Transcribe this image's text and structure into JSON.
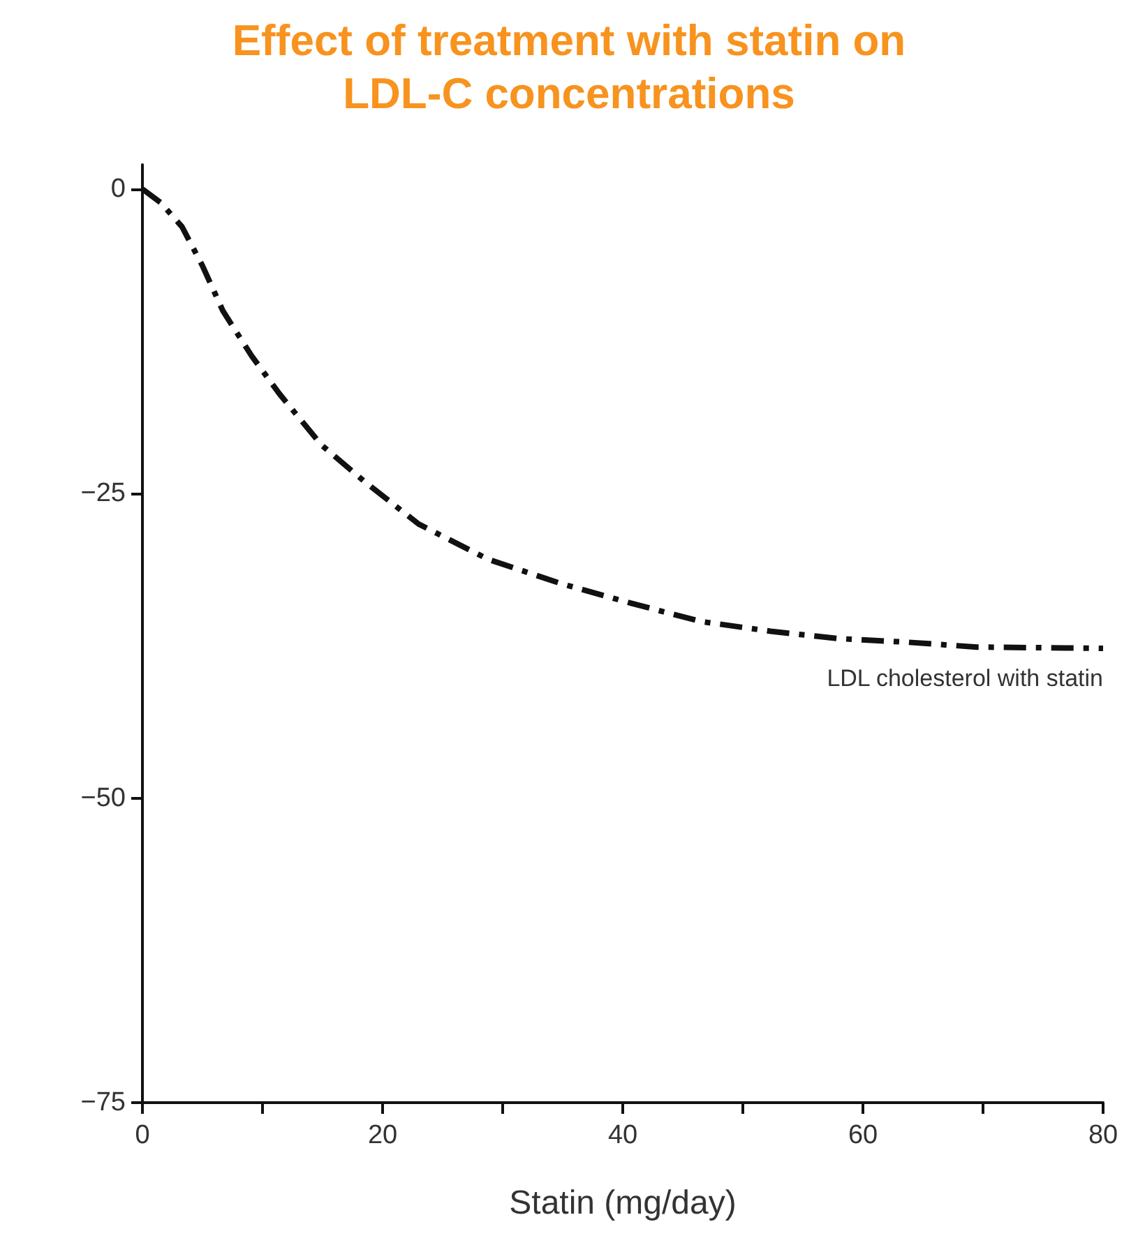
{
  "chart_data": {
    "type": "line",
    "title": "Effect of treatment with statin on\nLDL-C concentrations",
    "xlabel": "Statin (mg/day)",
    "series": [
      {
        "name": "LDL cholesterol with statin",
        "color": "#111111",
        "x": [
          0,
          1.5,
          3.3,
          5.0,
          6.7,
          9.1,
          11.4,
          14.9,
          18.6,
          23.0,
          28.8,
          34.9,
          40.7,
          46.5,
          52.3,
          57.9,
          63.7,
          69.5,
          80
        ],
        "values": [
          0,
          -1.1,
          -3.1,
          -6.3,
          -10,
          -13.7,
          -16.8,
          -21.0,
          -24.1,
          -27.5,
          -30.4,
          -32.4,
          -34.0,
          -35.5,
          -36.3,
          -36.9,
          -37.2,
          -37.6,
          -37.7
        ]
      }
    ],
    "xlim": [
      0,
      80
    ],
    "xticks": [
      0,
      {
        "value": 10,
        "label": null
      },
      20,
      {
        "value": 30,
        "label": null
      },
      40,
      {
        "value": 50,
        "label": null
      },
      60,
      {
        "value": 70,
        "label": null
      },
      80
    ],
    "ylim": [
      -75,
      2
    ],
    "yticks": [
      0,
      -25,
      -50,
      -75
    ],
    "marker": "none",
    "line_style": "dashed"
  }
}
